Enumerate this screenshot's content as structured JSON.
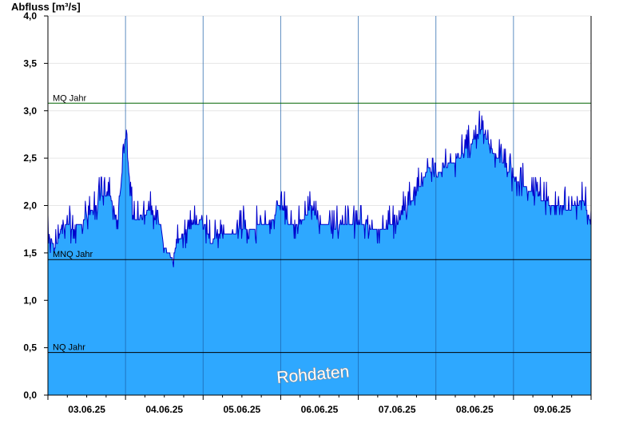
{
  "chart_data": {
    "type": "area",
    "ylabel": "Abfluss [m³/s]",
    "ylim": [
      0,
      4.0
    ],
    "yticks": [
      "0,0",
      "0,5",
      "1,0",
      "1,5",
      "2,0",
      "2,5",
      "3,0",
      "3,5",
      "4,0"
    ],
    "ytick_values": [
      0,
      0.5,
      1.0,
      1.5,
      2.0,
      2.5,
      3.0,
      3.5,
      4.0
    ],
    "xlim_days": [
      0,
      7
    ],
    "xtick_labels": [
      "03.06.25",
      "04.06.25",
      "05.06.25",
      "06.06.25",
      "07.06.25",
      "08.06.25",
      "09.06.25"
    ],
    "grid": true,
    "fill_color": "#2ea8ff",
    "line_color": "#0000cc",
    "reference_lines": [
      {
        "label": "MQ Jahr",
        "value": 3.08,
        "color": "#006400"
      },
      {
        "label": "MNQ Jahr",
        "value": 1.43,
        "color": "#000000"
      },
      {
        "label": "NQ Jahr",
        "value": 0.45,
        "color": "#000000"
      }
    ],
    "watermark": "Rohdaten",
    "series": [
      {
        "x": [
          0.0,
          0.1,
          0.2,
          0.3,
          0.4,
          0.5,
          0.6,
          0.7,
          0.8,
          0.9,
          1.0,
          1.1,
          1.2,
          1.3,
          1.4,
          1.45,
          1.5,
          1.6,
          1.7,
          1.8,
          1.9,
          2.0,
          2.1,
          2.2,
          2.3,
          2.4,
          2.5,
          2.6,
          2.7,
          2.8,
          2.9,
          3.0,
          3.1,
          3.2,
          3.3,
          3.4,
          3.5,
          3.6,
          3.7,
          3.8,
          3.9,
          4.0,
          4.1,
          4.2,
          4.3,
          4.4,
          4.5,
          4.6,
          4.7,
          4.8,
          4.9,
          5.0,
          5.1,
          5.2,
          5.3,
          5.4,
          5.5,
          5.6,
          5.7,
          5.8,
          5.9,
          6.0,
          6.1,
          6.2,
          6.3,
          6.4,
          6.5,
          6.6,
          6.7,
          6.8,
          6.9,
          7.0
        ],
        "y": [
          1.7,
          1.55,
          1.85,
          1.75,
          1.8,
          1.85,
          2.0,
          2.1,
          2.1,
          1.85,
          2.75,
          1.85,
          1.85,
          1.95,
          1.85,
          1.8,
          1.55,
          1.45,
          1.65,
          1.75,
          1.8,
          1.85,
          1.6,
          1.7,
          1.72,
          1.7,
          1.75,
          1.75,
          1.78,
          1.8,
          1.85,
          2.05,
          1.8,
          1.8,
          1.85,
          2.0,
          1.8,
          1.78,
          1.75,
          1.8,
          1.82,
          1.8,
          1.8,
          1.75,
          1.75,
          1.78,
          1.8,
          1.95,
          2.05,
          2.2,
          2.4,
          2.3,
          2.4,
          2.45,
          2.5,
          2.6,
          2.7,
          2.8,
          2.6,
          2.5,
          2.4,
          2.3,
          2.25,
          2.15,
          2.1,
          2.05,
          2.0,
          2.0,
          1.95,
          2.0,
          2.05,
          1.8
        ]
      }
    ]
  }
}
